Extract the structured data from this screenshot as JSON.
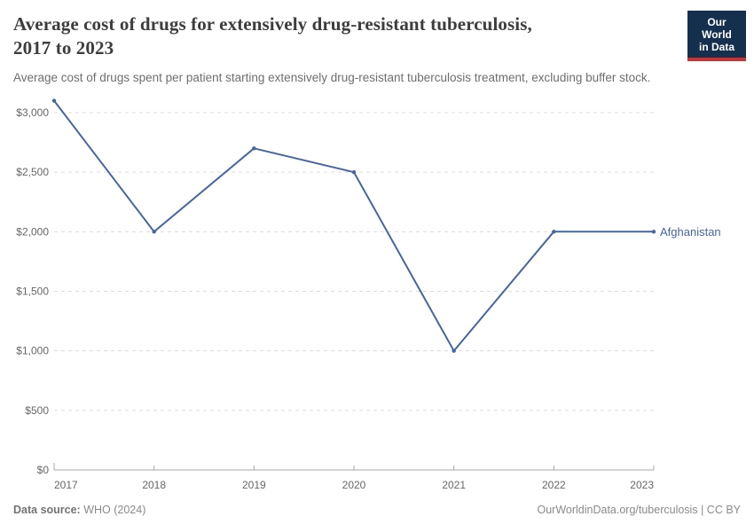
{
  "header": {
    "title_lines": [
      "Average cost of drugs for extensively drug-resistant tuberculosis,",
      "2017 to 2023"
    ],
    "subtitle": "Average cost of drugs spent per patient starting extensively drug-resistant tuberculosis treatment, excluding buffer stock.",
    "logo": {
      "line1": "Our World",
      "line2": "in Data",
      "bg_color": "#15304E",
      "bar_color": "#CE3131"
    }
  },
  "chart_data": {
    "type": "line",
    "title": "Average cost of drugs for extensively drug-resistant tuberculosis, 2017 to 2023",
    "x": [
      2017,
      2018,
      2019,
      2020,
      2021,
      2022,
      2023
    ],
    "xtick_labels": [
      "2017",
      "2018",
      "2019",
      "2020",
      "2021",
      "2022",
      "2023"
    ],
    "series": [
      {
        "name": "Afghanistan",
        "values": [
          3100,
          2000,
          2700,
          2500,
          1000,
          2000,
          2000
        ],
        "color": "#4566A4"
      }
    ],
    "unit": "US$",
    "ylim": [
      0,
      3100
    ],
    "yticks": [
      0,
      500,
      1000,
      1500,
      2000,
      2500,
      3000
    ],
    "ytick_labels": [
      "$0",
      "$500",
      "$1,000",
      "$1,500",
      "$2,000",
      "$2,500",
      "$3,000"
    ],
    "grid": "horizontal-dashed",
    "legend": "end-of-line-label"
  },
  "footer": {
    "source_label": "Data source:",
    "source_value": "WHO (2024)",
    "link": "OurWorldinData.org/tuberculosis",
    "divider": " | ",
    "license": "CC BY"
  }
}
